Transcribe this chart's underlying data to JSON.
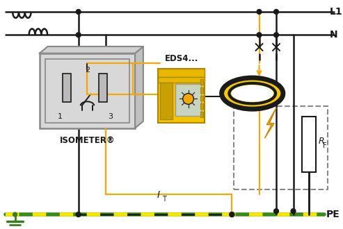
{
  "bg_color": "#ffffff",
  "BLACK": "#1a1a1a",
  "ORANGE": "#F5A800",
  "GRAY_BOX": "#D8D8D8",
  "GRAY_EDGE": "#888888",
  "YELLOW_EDS": "#F5C400",
  "YELLOW_TOROID": "#F5C800",
  "GREEN": "#3a7d1e",
  "LIME": "#c8d400",
  "label_L1": "L1",
  "label_N": "N",
  "label_PE": "PE",
  "label_IT": "I",
  "label_IT_sub": "T",
  "label_RF": "R",
  "label_RF_sub": "F",
  "label_EDS": "EDS4...",
  "label_ISO": "ISOMETER®",
  "figw": 4.93,
  "figh": 3.3,
  "dpi": 100
}
